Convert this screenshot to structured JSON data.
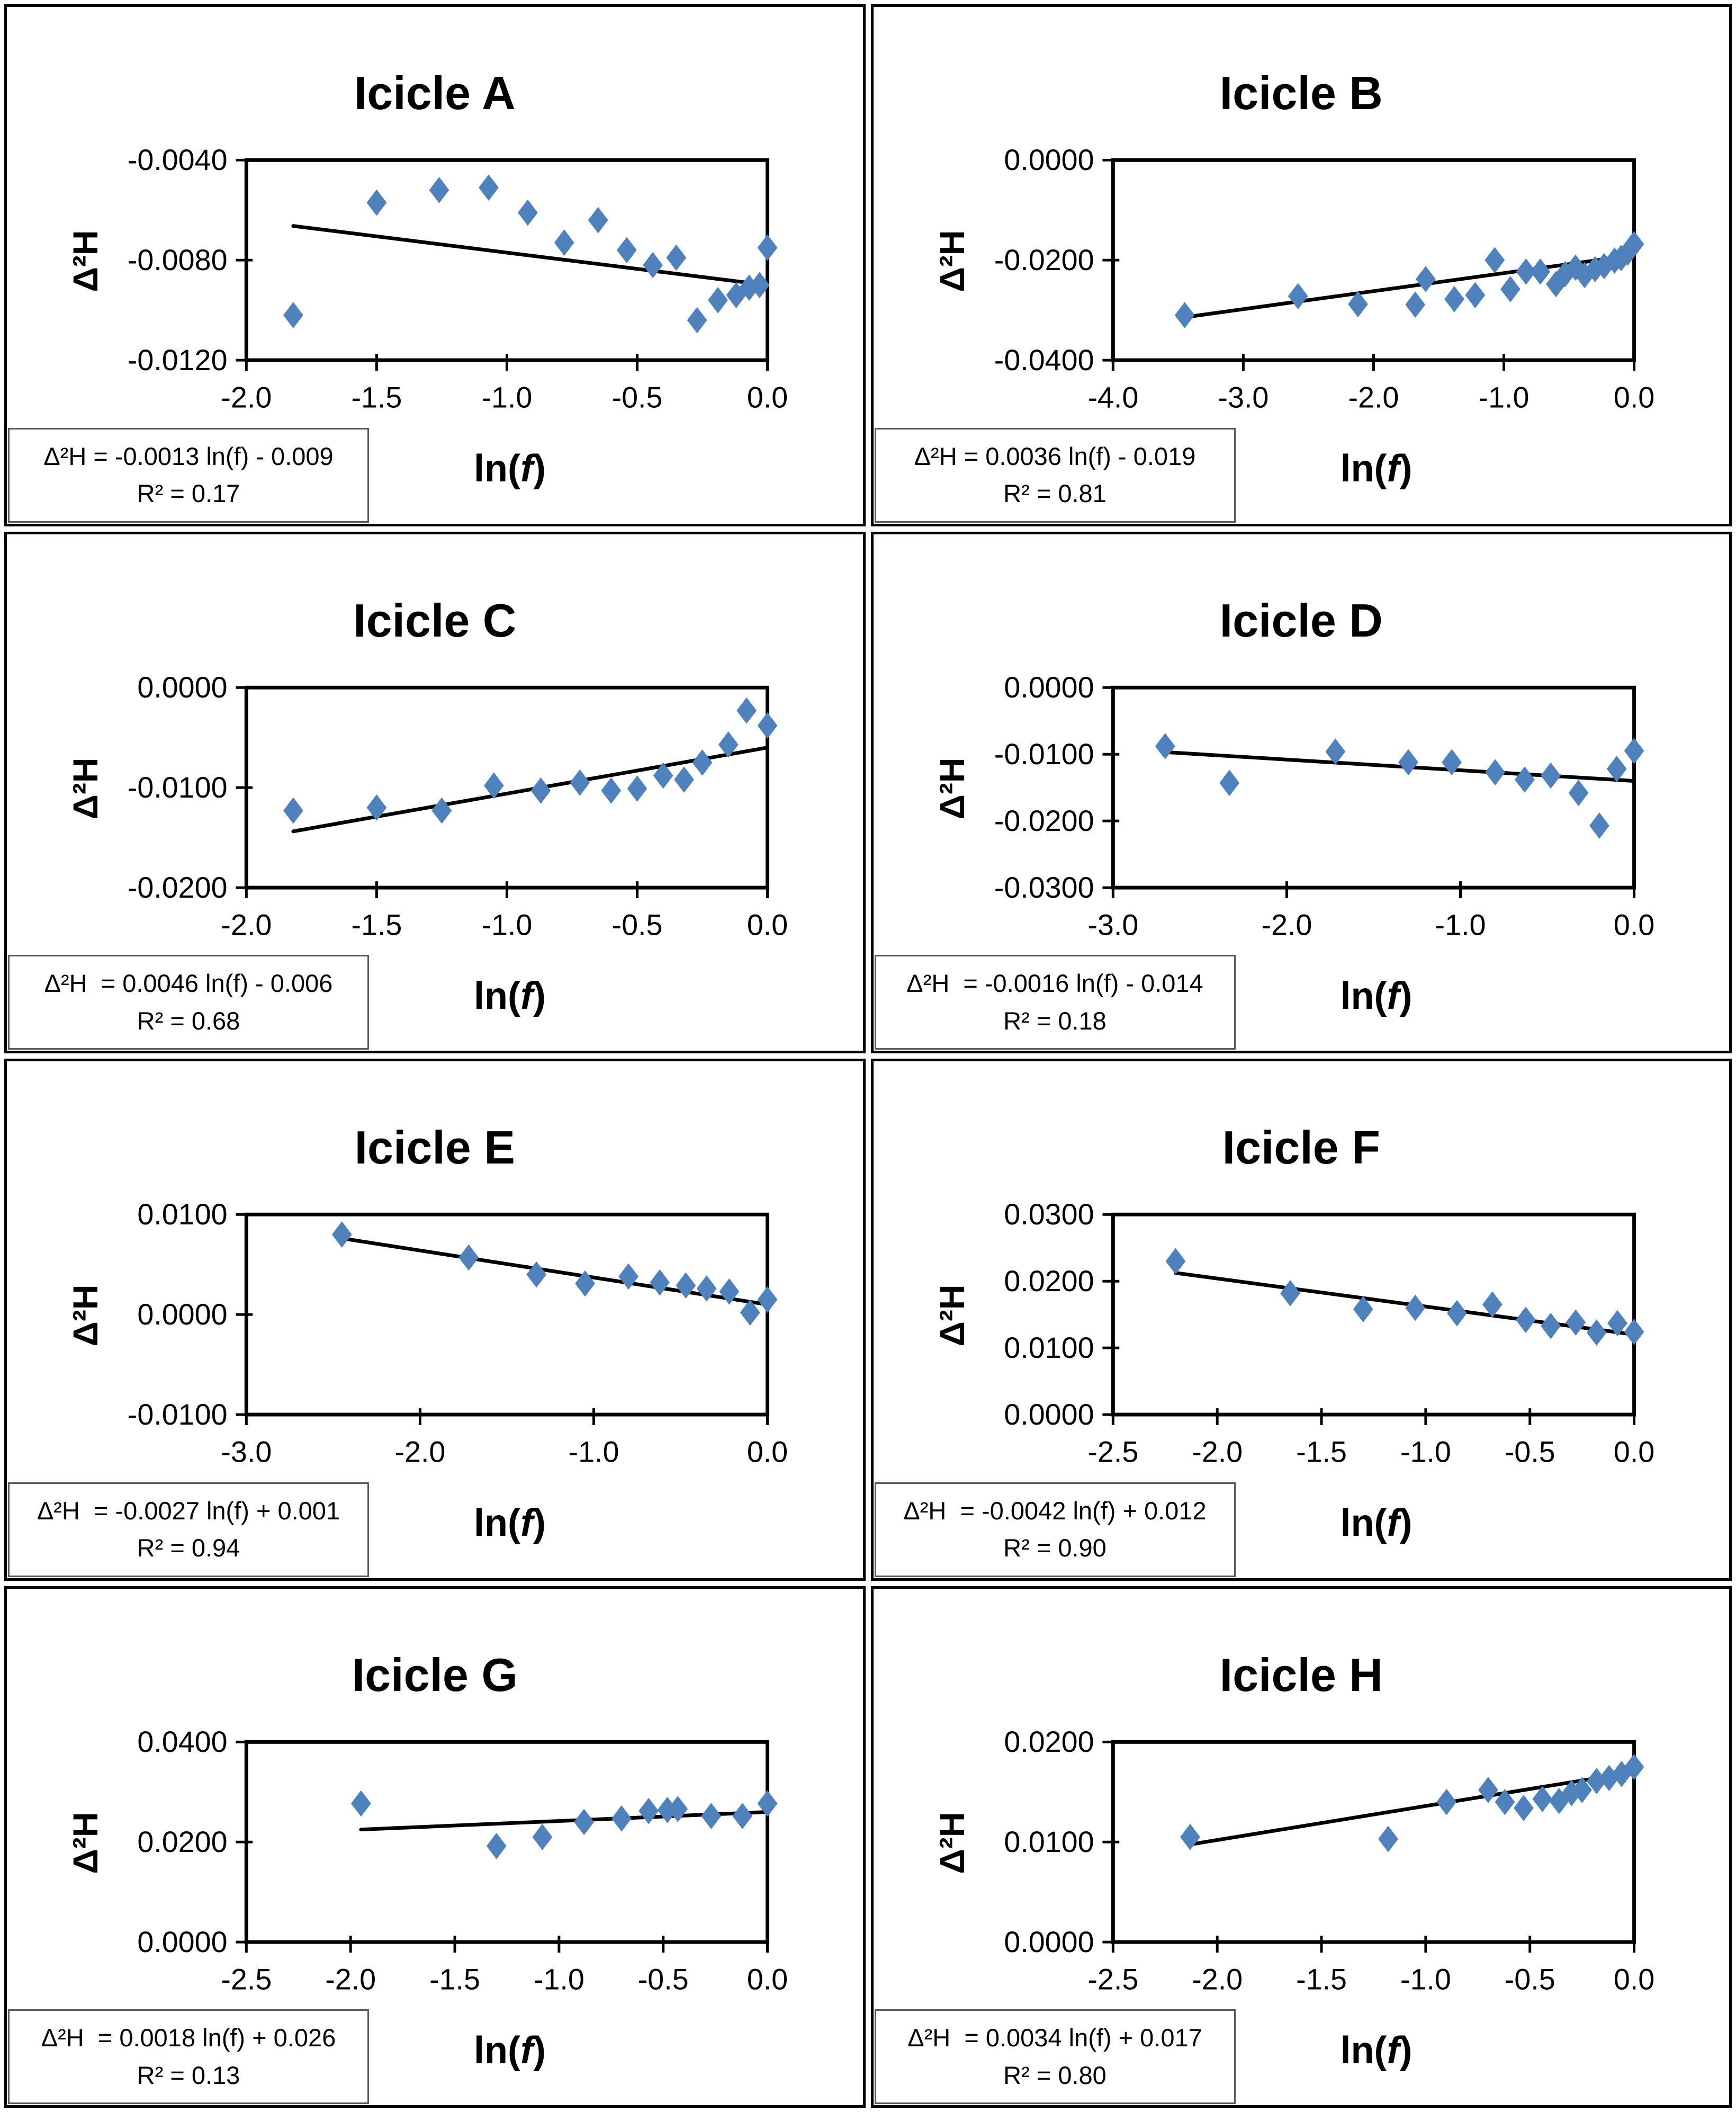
{
  "figure": {
    "background": "#ffffff",
    "marker_color": "#4F81BD",
    "trendline_color": "#000000",
    "axis_color": "#000000",
    "panel_border_color": "#000000",
    "equation_box_border_color": "#595959",
    "ylabel": "Δ²H",
    "xlabel": {
      "pre": "ln(",
      "var": "f",
      "post": ")"
    }
  },
  "chart_data": [
    {
      "type": "scatter",
      "title": "Icicle A",
      "xlabel": "ln(f)",
      "ylabel": "Δ²H",
      "xlim": [
        -2.0,
        0.0
      ],
      "xticks": [
        -2.0,
        -1.5,
        -1.0,
        -0.5,
        0.0
      ],
      "ylim": [
        -0.012,
        -0.004
      ],
      "yticks": [
        -0.004,
        -0.008,
        -0.012
      ],
      "xtick_decimals": 1,
      "ytick_decimals": 4,
      "grid": false,
      "legend": false,
      "points": [
        [
          -1.82,
          -0.0102
        ],
        [
          -1.5,
          -0.0057
        ],
        [
          -1.26,
          -0.0052
        ],
        [
          -1.07,
          -0.0051
        ],
        [
          -0.92,
          -0.0061
        ],
        [
          -0.78,
          -0.0073
        ],
        [
          -0.65,
          -0.0064
        ],
        [
          -0.54,
          -0.0076
        ],
        [
          -0.44,
          -0.0082
        ],
        [
          -0.35,
          -0.0079
        ],
        [
          -0.27,
          -0.0104
        ],
        [
          -0.19,
          -0.0096
        ],
        [
          -0.12,
          -0.0094
        ],
        [
          -0.07,
          -0.0091
        ],
        [
          -0.03,
          -0.009
        ],
        [
          0.0,
          -0.0075
        ]
      ],
      "trendline": {
        "slope": -0.0013,
        "intercept": -0.009,
        "x_start": -1.82,
        "x_end": 0.0
      },
      "equation": "Δ²H = -0.0013 ln(f) - 0.009",
      "r_squared": "R² = 0.17"
    },
    {
      "type": "scatter",
      "title": "Icicle B",
      "xlabel": "ln(f)",
      "ylabel": "Δ²H",
      "xlim": [
        -4.0,
        0.0
      ],
      "xticks": [
        -4.0,
        -3.0,
        -2.0,
        -1.0,
        0.0
      ],
      "ylim": [
        -0.04,
        0.0
      ],
      "yticks": [
        0.0,
        -0.02,
        -0.04
      ],
      "xtick_decimals": 1,
      "ytick_decimals": 4,
      "grid": false,
      "legend": false,
      "points": [
        [
          -3.45,
          -0.031
        ],
        [
          -2.58,
          -0.0272
        ],
        [
          -2.12,
          -0.0288
        ],
        [
          -1.68,
          -0.0289
        ],
        [
          -1.6,
          -0.0238
        ],
        [
          -1.38,
          -0.0278
        ],
        [
          -1.22,
          -0.027
        ],
        [
          -1.07,
          -0.02
        ],
        [
          -0.95,
          -0.0258
        ],
        [
          -0.83,
          -0.0223
        ],
        [
          -0.72,
          -0.0223
        ],
        [
          -0.6,
          -0.0248
        ],
        [
          -0.53,
          -0.0228
        ],
        [
          -0.45,
          -0.0215
        ],
        [
          -0.38,
          -0.023
        ],
        [
          -0.3,
          -0.0218
        ],
        [
          -0.23,
          -0.0212
        ],
        [
          -0.15,
          -0.0201
        ],
        [
          -0.1,
          -0.0196
        ],
        [
          -0.05,
          -0.0185
        ],
        [
          0.0,
          -0.0168
        ]
      ],
      "trendline": {
        "slope": 0.0036,
        "intercept": -0.019,
        "x_start": -3.45,
        "x_end": 0.0
      },
      "equation": "Δ²H = 0.0036 ln(f) - 0.019",
      "r_squared": "R² = 0.81"
    },
    {
      "type": "scatter",
      "title": "Icicle C",
      "xlabel": "ln(f)",
      "ylabel": "Δ²H",
      "xlim": [
        -2.0,
        0.0
      ],
      "xticks": [
        -2.0,
        -1.5,
        -1.0,
        -0.5,
        0.0
      ],
      "ylim": [
        -0.02,
        0.0
      ],
      "yticks": [
        0.0,
        -0.01,
        -0.02
      ],
      "xtick_decimals": 1,
      "ytick_decimals": 4,
      "grid": false,
      "legend": false,
      "points": [
        [
          -1.82,
          -0.0123
        ],
        [
          -1.5,
          -0.012
        ],
        [
          -1.25,
          -0.0123
        ],
        [
          -1.05,
          -0.0098
        ],
        [
          -0.87,
          -0.0103
        ],
        [
          -0.72,
          -0.0095
        ],
        [
          -0.6,
          -0.0103
        ],
        [
          -0.5,
          -0.0101
        ],
        [
          -0.4,
          -0.0088
        ],
        [
          -0.32,
          -0.0092
        ],
        [
          -0.25,
          -0.0075
        ],
        [
          -0.15,
          -0.0057
        ],
        [
          -0.08,
          -0.0023
        ],
        [
          0.0,
          -0.0038
        ]
      ],
      "trendline": {
        "slope": 0.0046,
        "intercept": -0.006,
        "x_start": -1.82,
        "x_end": 0.0
      },
      "equation": "Δ²H  = 0.0046 ln(f) - 0.006",
      "r_squared": "R² = 0.68"
    },
    {
      "type": "scatter",
      "title": "Icicle D",
      "xlabel": "ln(f)",
      "ylabel": "Δ²H",
      "xlim": [
        -3.0,
        0.0
      ],
      "xticks": [
        -3.0,
        -2.0,
        -1.0,
        0.0
      ],
      "ylim": [
        -0.03,
        0.0
      ],
      "yticks": [
        0.0,
        -0.01,
        -0.02,
        -0.03
      ],
      "xtick_decimals": 1,
      "ytick_decimals": 4,
      "grid": false,
      "legend": false,
      "points": [
        [
          -2.7,
          -0.0088
        ],
        [
          -2.33,
          -0.0143
        ],
        [
          -1.72,
          -0.0096
        ],
        [
          -1.3,
          -0.0112
        ],
        [
          -1.05,
          -0.0112
        ],
        [
          -0.8,
          -0.0127
        ],
        [
          -0.63,
          -0.0138
        ],
        [
          -0.48,
          -0.0132
        ],
        [
          -0.32,
          -0.0158
        ],
        [
          -0.2,
          -0.0207
        ],
        [
          -0.1,
          -0.0122
        ],
        [
          0.0,
          -0.0095
        ]
      ],
      "trendline": {
        "slope": -0.0016,
        "intercept": -0.014,
        "x_start": -2.7,
        "x_end": 0.0
      },
      "equation": "Δ²H  = -0.0016 ln(f) - 0.014",
      "r_squared": "R² = 0.18"
    },
    {
      "type": "scatter",
      "title": "Icicle E",
      "xlabel": "ln(f)",
      "ylabel": "Δ²H",
      "xlim": [
        -3.0,
        0.0
      ],
      "xticks": [
        -3.0,
        -2.0,
        -1.0,
        0.0
      ],
      "ylim": [
        -0.01,
        0.01
      ],
      "yticks": [
        0.01,
        0.0,
        -0.01
      ],
      "xtick_decimals": 1,
      "ytick_decimals": 4,
      "grid": false,
      "legend": false,
      "points": [
        [
          -2.45,
          0.008
        ],
        [
          -1.72,
          0.0057
        ],
        [
          -1.33,
          0.004
        ],
        [
          -1.05,
          0.0031
        ],
        [
          -0.8,
          0.0038
        ],
        [
          -0.62,
          0.0032
        ],
        [
          -0.47,
          0.0029
        ],
        [
          -0.35,
          0.0026
        ],
        [
          -0.22,
          0.0023
        ],
        [
          -0.1,
          0.0002
        ],
        [
          0.0,
          0.0015
        ]
      ],
      "trendline": {
        "slope": -0.0027,
        "intercept": 0.001,
        "x_start": -2.45,
        "x_end": 0.0
      },
      "equation": "Δ²H  = -0.0027 ln(f) + 0.001",
      "r_squared": "R² = 0.94"
    },
    {
      "type": "scatter",
      "title": "Icicle F",
      "xlabel": "ln(f)",
      "ylabel": "Δ²H",
      "xlim": [
        -2.5,
        0.0
      ],
      "xticks": [
        -2.5,
        -2.0,
        -1.5,
        -1.0,
        -0.5,
        0.0
      ],
      "ylim": [
        0.0,
        0.03
      ],
      "yticks": [
        0.03,
        0.02,
        0.01,
        0.0
      ],
      "xtick_decimals": 1,
      "ytick_decimals": 4,
      "grid": false,
      "legend": false,
      "points": [
        [
          -2.2,
          0.023
        ],
        [
          -1.65,
          0.0182
        ],
        [
          -1.3,
          0.0158
        ],
        [
          -1.05,
          0.016
        ],
        [
          -0.85,
          0.0152
        ],
        [
          -0.68,
          0.0165
        ],
        [
          -0.52,
          0.0142
        ],
        [
          -0.4,
          0.0133
        ],
        [
          -0.28,
          0.0138
        ],
        [
          -0.18,
          0.0123
        ],
        [
          -0.08,
          0.0137
        ],
        [
          0.0,
          0.0124
        ]
      ],
      "trendline": {
        "slope": -0.0042,
        "intercept": 0.012,
        "x_start": -2.2,
        "x_end": 0.0
      },
      "equation": "Δ²H  = -0.0042 ln(f) + 0.012",
      "r_squared": "R² = 0.90"
    },
    {
      "type": "scatter",
      "title": "Icicle G",
      "xlabel": "ln(f)",
      "ylabel": "Δ²H",
      "xlim": [
        -2.5,
        0.0
      ],
      "xticks": [
        -2.5,
        -2.0,
        -1.5,
        -1.0,
        -0.5,
        0.0
      ],
      "ylim": [
        0.0,
        0.04
      ],
      "yticks": [
        0.04,
        0.02,
        0.0
      ],
      "xtick_decimals": 1,
      "ytick_decimals": 4,
      "grid": false,
      "legend": false,
      "points": [
        [
          -1.95,
          0.0277
        ],
        [
          -1.3,
          0.0192
        ],
        [
          -1.08,
          0.021
        ],
        [
          -0.88,
          0.024
        ],
        [
          -0.7,
          0.0247
        ],
        [
          -0.57,
          0.0262
        ],
        [
          -0.48,
          0.0264
        ],
        [
          -0.43,
          0.0266
        ],
        [
          -0.27,
          0.0252
        ],
        [
          -0.12,
          0.0252
        ],
        [
          0.0,
          0.0277
        ]
      ],
      "trendline": {
        "slope": 0.0018,
        "intercept": 0.026,
        "x_start": -1.95,
        "x_end": 0.0
      },
      "equation": "Δ²H  = 0.0018 ln(f) + 0.026",
      "r_squared": "R² = 0.13"
    },
    {
      "type": "scatter",
      "title": "Icicle H",
      "xlabel": "ln(f)",
      "ylabel": "Δ²H",
      "xlim": [
        -2.5,
        0.0
      ],
      "xticks": [
        -2.5,
        -2.0,
        -1.5,
        -1.0,
        -0.5,
        0.0
      ],
      "ylim": [
        0.0,
        0.02
      ],
      "yticks": [
        0.02,
        0.01,
        0.0
      ],
      "xtick_decimals": 1,
      "ytick_decimals": 4,
      "grid": false,
      "legend": false,
      "points": [
        [
          -2.13,
          0.0105
        ],
        [
          -1.18,
          0.0103
        ],
        [
          -0.9,
          0.014
        ],
        [
          -0.7,
          0.0152
        ],
        [
          -0.62,
          0.014
        ],
        [
          -0.53,
          0.0134
        ],
        [
          -0.44,
          0.0143
        ],
        [
          -0.36,
          0.0141
        ],
        [
          -0.3,
          0.0149
        ],
        [
          -0.25,
          0.0152
        ],
        [
          -0.18,
          0.0161
        ],
        [
          -0.12,
          0.0164
        ],
        [
          -0.06,
          0.0168
        ],
        [
          0.0,
          0.0175
        ]
      ],
      "trendline": {
        "slope": 0.0034,
        "intercept": 0.017,
        "x_start": -2.13,
        "x_end": 0.0
      },
      "equation": "Δ²H  = 0.0034 ln(f) + 0.017",
      "r_squared": "R² = 0.80"
    }
  ]
}
